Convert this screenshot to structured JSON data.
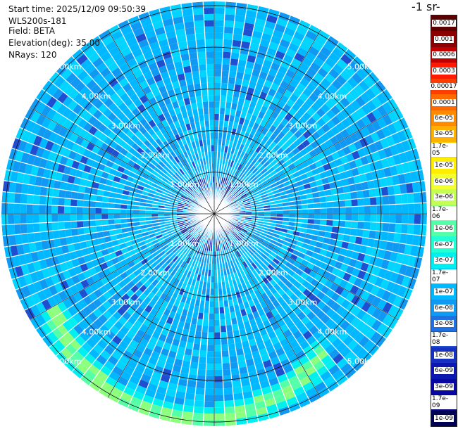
{
  "header": {
    "start_time": "Start time: 2025/12/09 09:50:39",
    "instrument": "WLS200s-181",
    "field": "Field: BETA",
    "elevation": "Elevation(deg): 35.00",
    "nrays": "NRays: 120"
  },
  "colorbar": {
    "title": "-1 sr-",
    "ticks": [
      "0.0017",
      "0.001",
      "0.0006",
      "0.0003",
      "0.00017",
      "0.0001",
      "6e-05",
      "3e-05",
      "1.7e-05",
      "1e-05",
      "6e-06",
      "3e-06",
      "1.7e-06",
      "1e-06",
      "6e-07",
      "3e-07",
      "1.7e-07",
      "1e-07",
      "6e-08",
      "3e-08",
      "1.7e-08",
      "1e-08",
      "6e-09",
      "3e-09",
      "1.7e-09",
      "1e-09"
    ],
    "colors": [
      "#5a0000",
      "#8b0000",
      "#c00000",
      "#ff1a00",
      "#ff3d00",
      "#ff6a00",
      "#ff8c00",
      "#ffb000",
      "#ffd000",
      "#ffee00",
      "#f2ff33",
      "#c4ff55",
      "#8cff7f",
      "#55ffa8",
      "#22ffd4",
      "#00f0f0",
      "#00d4ff",
      "#00b8ff",
      "#1099f2",
      "#2070e0",
      "#1f4fd0",
      "#1630c0",
      "#0c18b0",
      "#0808a0",
      "#050580",
      "#020254"
    ]
  },
  "chart_data": {
    "type": "heatmap",
    "projection": "polar-ppi",
    "field": "BETA",
    "elevation_deg": 35.0,
    "n_rays": 120,
    "range_unit": "km",
    "range_rings_km": [
      1.0,
      2.0,
      3.0,
      4.0,
      5.0
    ],
    "ring_labels": [
      "1.00km",
      "2.00km",
      "3.00km",
      "4.00km",
      "5.00km"
    ],
    "max_range_km": 5.1,
    "background_level": "1e-07",
    "features": [
      {
        "description": "enhanced backscatter arc",
        "azimuth_deg_start": 140,
        "azimuth_deg_end": 240,
        "range_km_start": 3.9,
        "range_km_end": 5.0,
        "level": "1.7e-06"
      }
    ],
    "colorscale": "log",
    "vmin": 1e-09,
    "vmax": 0.0017
  }
}
